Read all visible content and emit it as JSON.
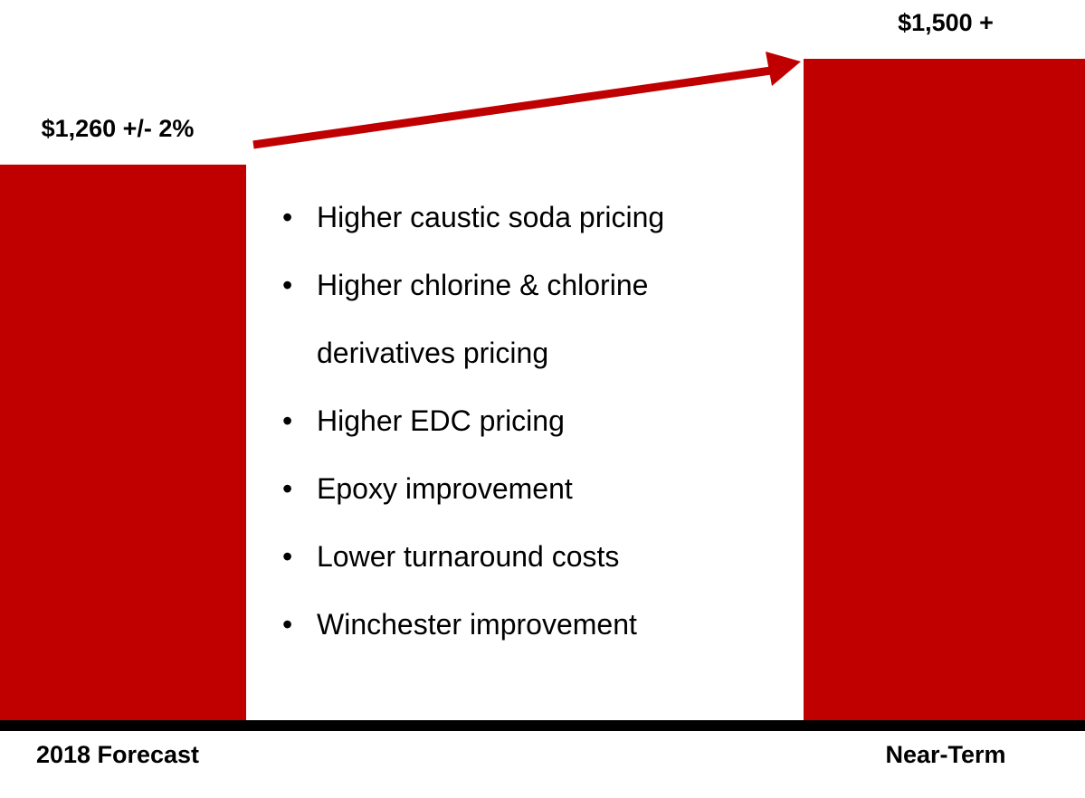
{
  "chart_data": {
    "type": "bar",
    "categories": [
      "2018 Forecast",
      "Near-Term"
    ],
    "values": [
      1260,
      1500
    ],
    "value_labels": [
      "$1,260 +/- 2%",
      "$1,500 +"
    ],
    "color": "#c00000",
    "annotations": [
      "Higher caustic soda pricing",
      "Higher chlorine & chlorine derivatives pricing",
      "Higher EDC pricing",
      "Epoxy improvement",
      "Lower turnaround costs",
      "Winchester improvement"
    ]
  }
}
